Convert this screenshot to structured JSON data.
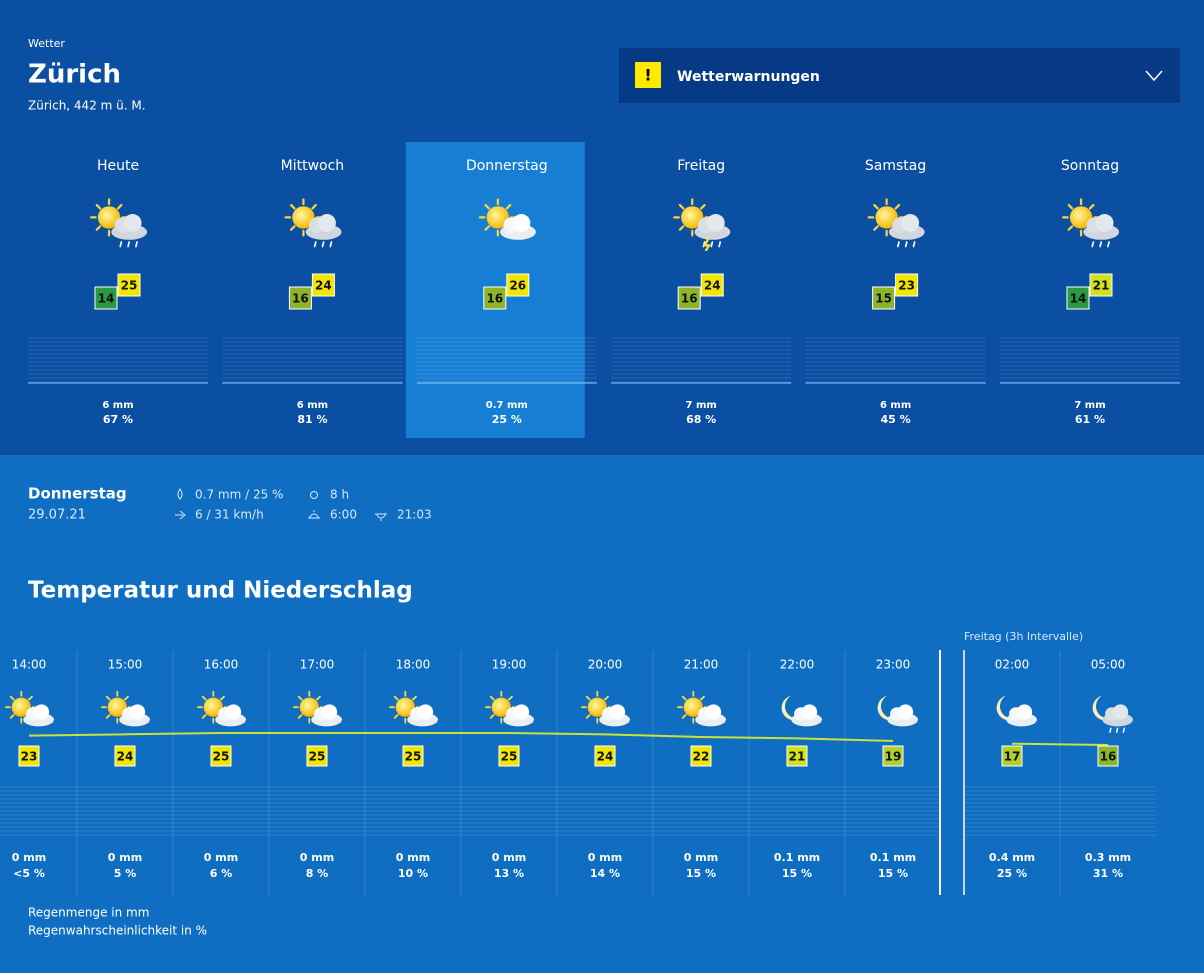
{
  "header": {
    "label": "Wetter",
    "city": "Zürich",
    "location": "Zürich, 442 m ü. M."
  },
  "warning": {
    "icon": "!",
    "label": "Wetterwarnungen"
  },
  "days": [
    {
      "name": "Heute",
      "icon": "sun-cloud-rain",
      "max": 25,
      "min": 14,
      "rain": "6 mm",
      "probability": "67 %"
    },
    {
      "name": "Mittwoch",
      "icon": "sun-cloud-rain",
      "max": 24,
      "min": 16,
      "rain": "6 mm",
      "probability": "81 %"
    },
    {
      "name": "Donnerstag",
      "icon": "sun-cloud",
      "max": 26,
      "min": 16,
      "rain": "0.7 mm",
      "probability": "25 %"
    },
    {
      "name": "Freitag",
      "icon": "sun-cloud-thunder",
      "max": 24,
      "min": 16,
      "rain": "7 mm",
      "probability": "68 %"
    },
    {
      "name": "Samstag",
      "icon": "sun-cloud-rain",
      "max": 23,
      "min": 15,
      "rain": "6 mm",
      "probability": "45 %"
    },
    {
      "name": "Sonntag",
      "icon": "sun-cloud-rain",
      "max": 21,
      "min": 14,
      "rain": "7 mm",
      "probability": "61 %"
    }
  ],
  "selected_day": 2,
  "details": {
    "day": "Donnerstag",
    "date": "29.07.21",
    "rain": "0.7 mm / 25 %",
    "wind": "6 / 31 km/h",
    "sunshine": "8 h",
    "sunrise": "6:00",
    "sunset": "21:03"
  },
  "hourly": {
    "title": "Temperatur und Niederschlag",
    "next_day_label": "Freitag (3h Intervalle)",
    "next_day_start": 10,
    "hours": [
      {
        "time": "14:00",
        "icon": "sun-cloud",
        "temp": 23,
        "rain": "0 mm",
        "probability": "<5 %"
      },
      {
        "time": "15:00",
        "icon": "sun-cloud",
        "temp": 24,
        "rain": "0 mm",
        "probability": "5 %"
      },
      {
        "time": "16:00",
        "icon": "sun-cloud",
        "temp": 25,
        "rain": "0 mm",
        "probability": "6 %"
      },
      {
        "time": "17:00",
        "icon": "sun-cloud",
        "temp": 25,
        "rain": "0 mm",
        "probability": "8 %"
      },
      {
        "time": "18:00",
        "icon": "sun-cloud",
        "temp": 25,
        "rain": "0 mm",
        "probability": "10 %"
      },
      {
        "time": "19:00",
        "icon": "sun-cloud",
        "temp": 25,
        "rain": "0 mm",
        "probability": "13 %"
      },
      {
        "time": "20:00",
        "icon": "sun-cloud",
        "temp": 24,
        "rain": "0 mm",
        "probability": "14 %"
      },
      {
        "time": "21:00",
        "icon": "sun-cloud",
        "temp": 22,
        "rain": "0 mm",
        "probability": "15 %"
      },
      {
        "time": "22:00",
        "icon": "moon-cloud",
        "temp": 21,
        "rain": "0.1 mm",
        "probability": "15 %"
      },
      {
        "time": "23:00",
        "icon": "moon-cloud",
        "temp": 19,
        "rain": "0.1 mm",
        "probability": "15 %"
      },
      {
        "time": "02:00",
        "icon": "moon-cloud",
        "temp": 17,
        "rain": "0.4 mm",
        "probability": "25 %"
      },
      {
        "time": "05:00",
        "icon": "moon-cloud-rain",
        "temp": 16,
        "rain": "0.3 mm",
        "probability": "31 %"
      }
    ]
  },
  "legend": [
    "Regenmenge in mm",
    "Regenwahrscheinlichkeit in %"
  ]
}
